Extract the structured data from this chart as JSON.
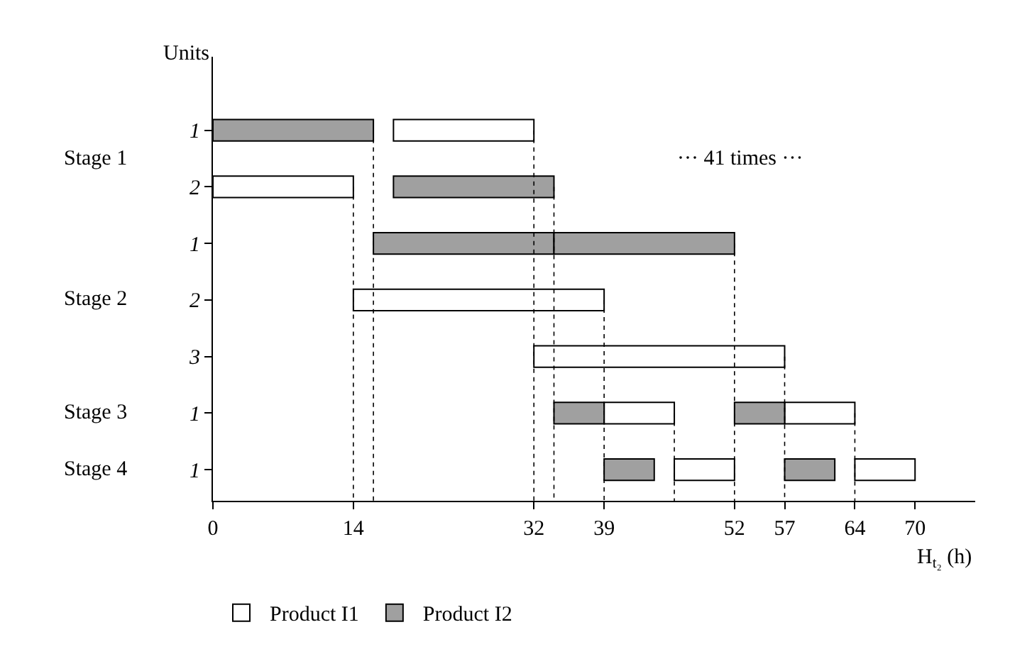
{
  "chart_data": {
    "type": "bar",
    "orientation": "horizontal",
    "xlabel": "H$_{t₂}$ (h)",
    "ylabel": "Units",
    "categories": [
      "1",
      "2",
      "1",
      "2",
      "3",
      "1",
      "1"
    ],
    "series": [
      {
        "name": "Product I1",
        "color": "#ffffff",
        "base": [
          18,
          0,
          null,
          14,
          32,
          39,
          46
        ],
        "values": [
          14,
          14,
          null,
          25,
          25,
          7,
          6
        ]
      },
      {
        "name": "Product I2",
        "color": "#a0a0a0",
        "base": [
          0,
          18,
          16,
          null,
          null,
          34,
          39
        ],
        "values": [
          16,
          16,
          18,
          null,
          null,
          5,
          5
        ]
      },
      {
        "color": "#ffffff",
        "base": [
          null,
          null,
          null,
          null,
          null,
          57,
          64
        ],
        "values": [
          null,
          null,
          null,
          null,
          null,
          7,
          6
        ]
      },
      {
        "color": "#a0a0a0",
        "base": [
          null,
          null,
          34,
          null,
          null,
          52,
          57
        ],
        "values": [
          null,
          null,
          18,
          null,
          null,
          5,
          5
        ]
      }
    ],
    "xlim": [
      0,
      76
    ],
    "xticks": [
      0,
      14,
      32,
      39,
      52,
      57,
      64,
      70
    ],
    "ref_lines": [
      {
        "axis": "x",
        "value": 14,
        "line_style": "dotted"
      },
      {
        "axis": "x",
        "value": 16,
        "line_style": "dotted"
      },
      {
        "axis": "x",
        "value": 32,
        "line_style": "dotted"
      },
      {
        "axis": "x",
        "value": 34,
        "line_style": "dotted"
      },
      {
        "axis": "x",
        "value": 39,
        "line_style": "dotted"
      },
      {
        "axis": "x",
        "value": 46,
        "line_style": "dotted"
      },
      {
        "axis": "x",
        "value": 52,
        "line_style": "dotted"
      },
      {
        "axis": "x",
        "value": 57,
        "line_style": "dotted"
      },
      {
        "axis": "x",
        "value": 64,
        "line_style": "dotted"
      }
    ],
    "annotations": [
      "Stage 1",
      "Stage 2",
      "Stage 3",
      "Stage 4",
      "··· 41 times ···"
    ],
    "legend": "bottom"
  }
}
